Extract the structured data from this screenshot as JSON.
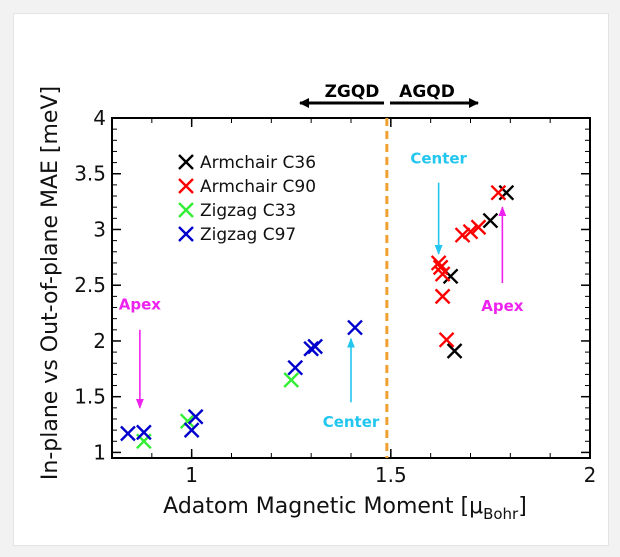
{
  "chart_data": {
    "type": "scatter",
    "title": "",
    "xlabel": "Adatom Magnetic Moment [μ",
    "xlabel_sub": "Bohr",
    "xlabel_end": "]",
    "ylabel": "In-plane vs  Out-of-plane MAE [meV]",
    "xlim": [
      0.8,
      2.0
    ],
    "ylim": [
      0.95,
      4.0
    ],
    "xticks": [
      1,
      1.5,
      2
    ],
    "xtick_labels": [
      "1",
      "1.5",
      "2"
    ],
    "yticks": [
      1,
      1.5,
      2,
      2.5,
      3,
      3.5,
      4
    ],
    "ytick_labels": [
      "1",
      "1.5",
      "2",
      "2.5",
      "3",
      "3.5",
      "4"
    ],
    "grid": false,
    "legend": "top-left",
    "series": [
      {
        "name": "Armchair C36",
        "color": "#000000",
        "points": [
          [
            1.65,
            2.58
          ],
          [
            1.66,
            1.91
          ],
          [
            1.75,
            3.08
          ],
          [
            1.79,
            3.33
          ]
        ]
      },
      {
        "name": "Armchair C90",
        "color": "#ff0000",
        "points": [
          [
            1.62,
            2.7
          ],
          [
            1.625,
            2.66
          ],
          [
            1.63,
            2.6
          ],
          [
            1.63,
            2.4
          ],
          [
            1.64,
            2.01
          ],
          [
            1.68,
            2.95
          ],
          [
            1.7,
            2.98
          ],
          [
            1.72,
            3.02
          ],
          [
            1.77,
            3.33
          ]
        ]
      },
      {
        "name": "Zigzag C33",
        "color": "#33ee33",
        "points": [
          [
            0.88,
            1.1
          ],
          [
            0.99,
            1.28
          ],
          [
            1.25,
            1.65
          ]
        ]
      },
      {
        "name": "Zigzag C97",
        "color": "#0000cc",
        "points": [
          [
            0.84,
            1.17
          ],
          [
            0.88,
            1.18
          ],
          [
            1.0,
            1.2
          ],
          [
            1.01,
            1.32
          ],
          [
            1.26,
            1.76
          ],
          [
            1.3,
            1.93
          ],
          [
            1.31,
            1.95
          ],
          [
            1.41,
            2.12
          ]
        ]
      }
    ],
    "divider": {
      "x": 1.49,
      "color": "#f0a030"
    },
    "region_labels": [
      {
        "label": "ZGQD",
        "direction": "left"
      },
      {
        "label": "AGQD",
        "direction": "right"
      }
    ],
    "annotations": [
      {
        "name": "center-annotation-right",
        "label": "Center",
        "color": "#22c6ee",
        "text_x": 1.62,
        "text_y": 3.59,
        "arrow_from": [
          1.62,
          3.42
        ],
        "arrow_to": [
          1.62,
          2.78
        ]
      },
      {
        "name": "apex-annotation-right",
        "label": "Apex",
        "color": "#ee22ee",
        "text_x": 1.78,
        "text_y": 2.27,
        "arrow_from": [
          1.78,
          2.52
        ],
        "arrow_to": [
          1.78,
          3.2
        ]
      },
      {
        "name": "apex-annotation-left",
        "label": "Apex",
        "color": "#ee22ee",
        "text_x": 0.87,
        "text_y": 2.28,
        "arrow_from": [
          0.87,
          2.1
        ],
        "arrow_to": [
          0.87,
          1.4
        ]
      },
      {
        "name": "center-annotation-left",
        "label": "Center",
        "color": "#22c6ee",
        "text_x": 1.4,
        "text_y": 1.23,
        "arrow_from": [
          1.4,
          1.45
        ],
        "arrow_to": [
          1.4,
          2.02
        ]
      }
    ]
  }
}
